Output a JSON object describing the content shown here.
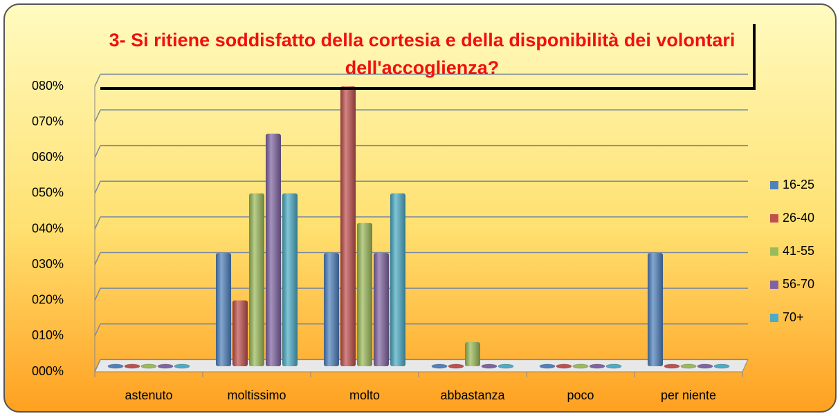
{
  "chart_data": {
    "type": "bar",
    "title": "3- Si ritiene soddisfatto della cortesia e della disponibilità dei volontari dell'accoglienza?",
    "categories": [
      "astenuto",
      "moltissimo",
      "molto",
      "abbastanza",
      "poco",
      "per niente"
    ],
    "series": [
      {
        "name": "16-25",
        "color": "#4f81bd",
        "values": [
          0,
          33.3,
          33.3,
          0,
          0,
          33.3
        ]
      },
      {
        "name": "26-40",
        "color": "#c0504d",
        "values": [
          0,
          20,
          80,
          0,
          0,
          0
        ]
      },
      {
        "name": "41-55",
        "color": "#9bbb59",
        "values": [
          0,
          50,
          41.7,
          8.3,
          0,
          0
        ]
      },
      {
        "name": "56-70",
        "color": "#8064a2",
        "values": [
          0,
          66.7,
          33.3,
          0,
          0,
          0
        ]
      },
      {
        "name": "70+",
        "color": "#4bacc6",
        "values": [
          0,
          50,
          50,
          0,
          0,
          0
        ]
      }
    ],
    "ylim": [
      0,
      80
    ],
    "yticks": [
      {
        "value": 0,
        "label": "000%"
      },
      {
        "value": 10,
        "label": "010%"
      },
      {
        "value": 20,
        "label": "020%"
      },
      {
        "value": 30,
        "label": "030%"
      },
      {
        "value": 40,
        "label": "040%"
      },
      {
        "value": 50,
        "label": "050%"
      },
      {
        "value": 60,
        "label": "060%"
      },
      {
        "value": 70,
        "label": "070%"
      },
      {
        "value": 80,
        "label": "080%"
      }
    ],
    "grid": true,
    "legend": "right"
  }
}
